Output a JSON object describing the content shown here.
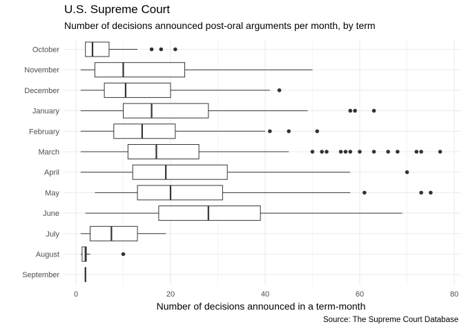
{
  "chart_data": {
    "type": "boxplot",
    "orientation": "horizontal",
    "title": "U.S. Supreme Court",
    "subtitle": "Number of decisions announced post-oral arguments per month, by term",
    "caption": "Source: The Supreme Court Database",
    "xlabel": "Number of decisions announced in a term-month",
    "ylabel": "",
    "xlim": [
      -1,
      80
    ],
    "xticks": [
      0,
      20,
      40,
      60,
      80
    ],
    "grid": true,
    "categories": [
      "October",
      "November",
      "December",
      "January",
      "February",
      "March",
      "April",
      "May",
      "June",
      "July",
      "August",
      "September"
    ],
    "boxes": [
      {
        "category": "October",
        "min": 2,
        "q1": 2,
        "median": 3.5,
        "q3": 7,
        "max": 13,
        "outliers": [
          16,
          18,
          21
        ]
      },
      {
        "category": "November",
        "min": 1,
        "q1": 4,
        "median": 10,
        "q3": 23,
        "max": 50,
        "outliers": []
      },
      {
        "category": "December",
        "min": 1,
        "q1": 6,
        "median": 10.5,
        "q3": 20,
        "max": 41,
        "outliers": [
          43
        ]
      },
      {
        "category": "January",
        "min": 1,
        "q1": 10,
        "median": 16,
        "q3": 28,
        "max": 49,
        "outliers": [
          58,
          59,
          63
        ]
      },
      {
        "category": "February",
        "min": 1,
        "q1": 8,
        "median": 14,
        "q3": 21,
        "max": 40,
        "outliers": [
          41,
          45,
          51
        ]
      },
      {
        "category": "March",
        "min": 1,
        "q1": 11,
        "median": 17,
        "q3": 26,
        "max": 45,
        "outliers": [
          50,
          52,
          53,
          56,
          57,
          58,
          60,
          63,
          66,
          68,
          72,
          73,
          77
        ]
      },
      {
        "category": "April",
        "min": 1,
        "q1": 12,
        "median": 19,
        "q3": 32,
        "max": 58,
        "outliers": [
          70
        ]
      },
      {
        "category": "May",
        "min": 4,
        "q1": 13,
        "median": 20,
        "q3": 31,
        "max": 58,
        "outliers": [
          61,
          73,
          75
        ]
      },
      {
        "category": "June",
        "min": 2,
        "q1": 17.5,
        "median": 28,
        "q3": 39,
        "max": 69,
        "outliers": []
      },
      {
        "category": "July",
        "min": 1,
        "q1": 3,
        "median": 7.5,
        "q3": 13,
        "max": 19,
        "outliers": []
      },
      {
        "category": "August",
        "min": 1,
        "q1": 1.3,
        "median": 2,
        "q3": 2.2,
        "max": 3,
        "outliers": [
          10
        ]
      },
      {
        "category": "September",
        "min": 2,
        "q1": 2,
        "median": 2,
        "q3": 2,
        "max": 2,
        "outliers": []
      }
    ]
  }
}
